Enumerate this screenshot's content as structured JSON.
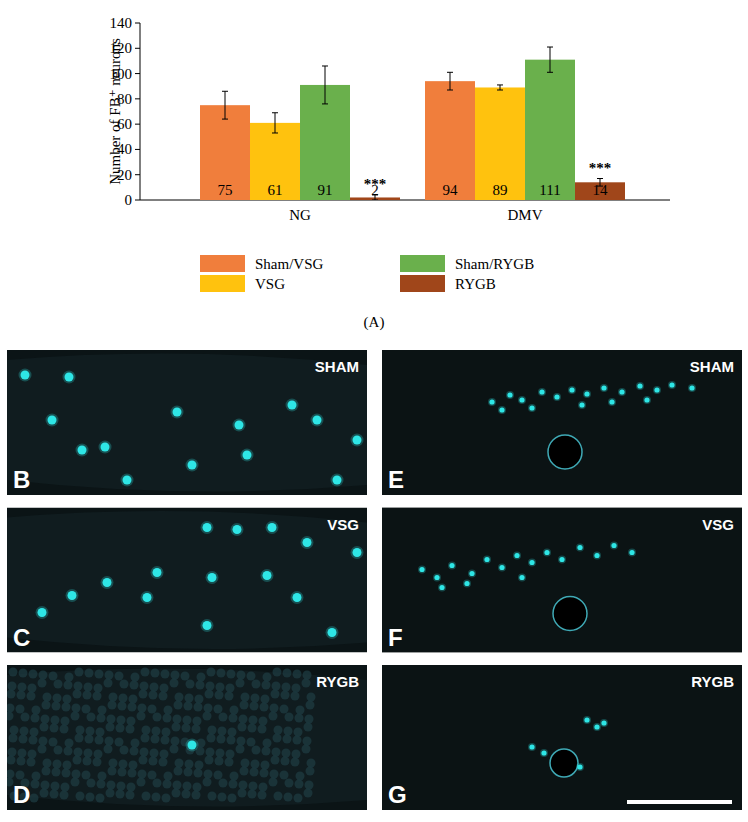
{
  "chart_data": {
    "type": "bar",
    "y_label": "Number of FB⁺ neurons",
    "categories": [
      "NG",
      "DMV"
    ],
    "series": [
      {
        "name": "Sham/VSG",
        "color": "#f07e3c",
        "values": [
          75,
          94
        ],
        "errors": [
          11,
          7
        ]
      },
      {
        "name": "VSG",
        "color": "#ffc20e",
        "values": [
          61,
          89
        ],
        "errors": [
          8,
          2
        ]
      },
      {
        "name": "Sham/RYGB",
        "color": "#6ab04c",
        "values": [
          91,
          111
        ],
        "errors": [
          15,
          10
        ]
      },
      {
        "name": "RYGB",
        "color": "#a0461a",
        "values": [
          2,
          14
        ],
        "errors": [
          2,
          3
        ],
        "annotations": [
          "***",
          "***"
        ]
      }
    ],
    "ylim": [
      0,
      140
    ],
    "yticks": [
      0,
      20,
      40,
      60,
      80,
      100,
      120,
      140
    ],
    "grid": false,
    "data_labels": true,
    "legend": "bottom"
  },
  "figure": {
    "panel_label": "(A)",
    "images": [
      {
        "letter": "B",
        "label": "SHAM"
      },
      {
        "letter": "C",
        "label": "VSG"
      },
      {
        "letter": "D",
        "label": "RYGB"
      },
      {
        "letter": "E",
        "label": "SHAM"
      },
      {
        "letter": "F",
        "label": "VSG"
      },
      {
        "letter": "G",
        "label": "RYGB"
      }
    ]
  }
}
